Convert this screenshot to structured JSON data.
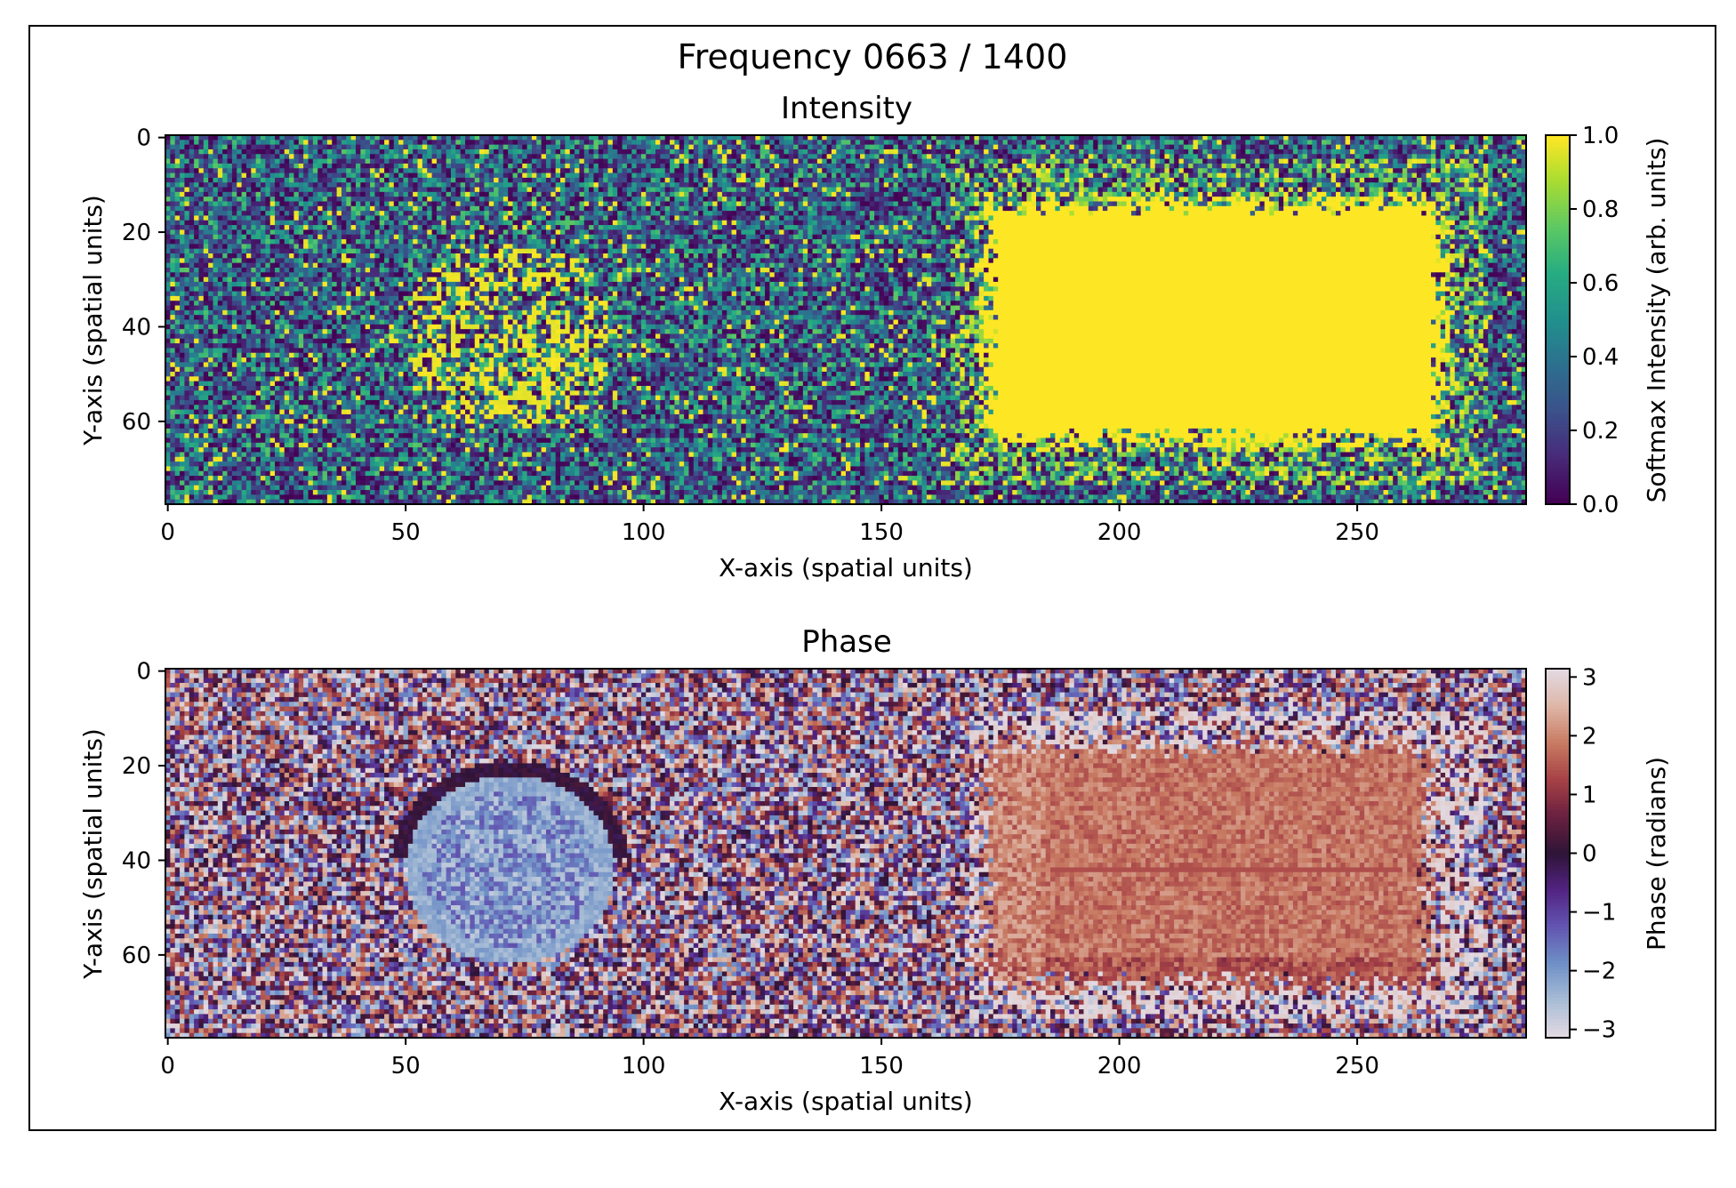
{
  "figure": {
    "suptitle": "Frequency 0663 / 1400"
  },
  "chart_data": [
    {
      "type": "heatmap",
      "title": "Intensity",
      "xlabel": "X-axis (spatial units)",
      "ylabel": "Y-axis (spatial units)",
      "xlim": [
        -0.5,
        285.5
      ],
      "ylim": [
        77.5,
        -0.5
      ],
      "grid_size": {
        "cols": 286,
        "rows": 78
      },
      "xticks": [
        0,
        50,
        100,
        150,
        200,
        250
      ],
      "xtick_labels": [
        "0",
        "50",
        "100",
        "150",
        "200",
        "250"
      ],
      "yticks": [
        0,
        20,
        40,
        60
      ],
      "ytick_labels": [
        "0",
        "20",
        "40",
        "60"
      ],
      "colormap": "viridis",
      "colorbar": {
        "label": "Softmax Intensity (arb. units)",
        "range": [
          0.0,
          1.0
        ],
        "ticks": [
          0.0,
          0.2,
          0.4,
          0.6,
          0.8,
          1.0
        ],
        "tick_labels": [
          "0.0",
          "0.2",
          "0.4",
          "0.6",
          "0.8",
          "1.0"
        ]
      },
      "features": [
        {
          "shape": "rectangle",
          "x_range": [
            172,
            268
          ],
          "y_range": [
            14,
            64
          ],
          "value": 1.0
        },
        {
          "shape": "ellipse",
          "center": [
            72,
            42
          ],
          "radii": [
            22,
            20
          ],
          "value": "elevated, speckled"
        },
        {
          "background": "random noise 0.0-1.0"
        }
      ]
    },
    {
      "type": "heatmap",
      "title": "Phase",
      "xlabel": "X-axis (spatial units)",
      "ylabel": "Y-axis (spatial units)",
      "xlim": [
        -0.5,
        285.5
      ],
      "ylim": [
        77.5,
        -0.5
      ],
      "grid_size": {
        "cols": 286,
        "rows": 78
      },
      "xticks": [
        0,
        50,
        100,
        150,
        200,
        250
      ],
      "xtick_labels": [
        "0",
        "50",
        "100",
        "150",
        "200",
        "250"
      ],
      "yticks": [
        0,
        20,
        40,
        60
      ],
      "ytick_labels": [
        "0",
        "20",
        "40",
        "60"
      ],
      "colormap": "twilight",
      "colorbar": {
        "label": "Phase (radians)",
        "range": [
          -3.14159,
          3.14159
        ],
        "ticks": [
          -3,
          -2,
          -1,
          0,
          1,
          2,
          3
        ],
        "tick_labels": [
          "−3",
          "−2",
          "−1",
          "0",
          "1",
          "2",
          "3"
        ]
      },
      "features": [
        {
          "shape": "rectangle",
          "x_range": [
            172,
            265
          ],
          "y_range": [
            16,
            66
          ],
          "value": "≈1.5 to 2"
        },
        {
          "shape": "ellipse",
          "center": [
            72,
            42
          ],
          "radii": [
            22,
            20
          ],
          "value": "≈ -2"
        },
        {
          "background": "random phase -π to π"
        }
      ]
    }
  ]
}
